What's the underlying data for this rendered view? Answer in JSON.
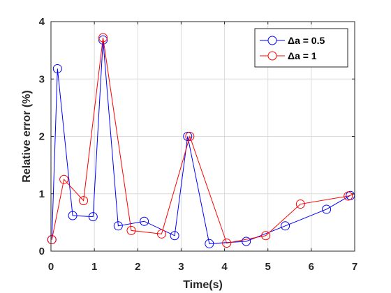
{
  "chart_data": {
    "type": "line",
    "xlabel": "Time(s)",
    "ylabel": "Relative error (%)",
    "xlim": [
      0,
      7
    ],
    "ylim": [
      0,
      4
    ],
    "xticks": [
      "0",
      "1",
      "2",
      "3",
      "4",
      "5",
      "6",
      "7"
    ],
    "yticks": [
      "0",
      "1",
      "2",
      "3",
      "4"
    ],
    "grid": true,
    "legend_position": "top-right",
    "series": [
      {
        "name": "Δa = 0.5",
        "color": "#0000ff",
        "marker": "circle",
        "points": [
          [
            0.02,
            0.2
          ],
          [
            0.15,
            3.18
          ],
          [
            0.5,
            0.62
          ],
          [
            0.97,
            0.6
          ],
          [
            1.2,
            3.68
          ],
          [
            1.55,
            0.44
          ],
          [
            2.15,
            0.52
          ],
          [
            2.85,
            0.27
          ],
          [
            3.15,
            2.0
          ],
          [
            3.65,
            0.13
          ],
          [
            4.5,
            0.17
          ],
          [
            5.4,
            0.44
          ],
          [
            6.35,
            0.73
          ],
          [
            6.9,
            0.97
          ]
        ]
      },
      {
        "name": "Δa = 1",
        "color": "#ff0000",
        "marker": "circle",
        "points": [
          [
            0.02,
            0.2
          ],
          [
            0.3,
            1.25
          ],
          [
            0.75,
            0.88
          ],
          [
            1.2,
            3.72
          ],
          [
            1.85,
            0.36
          ],
          [
            2.55,
            0.3
          ],
          [
            3.2,
            2.0
          ],
          [
            4.05,
            0.14
          ],
          [
            4.95,
            0.27
          ],
          [
            5.75,
            0.82
          ],
          [
            6.85,
            0.96
          ],
          [
            7.0,
            1.0
          ]
        ]
      }
    ]
  }
}
